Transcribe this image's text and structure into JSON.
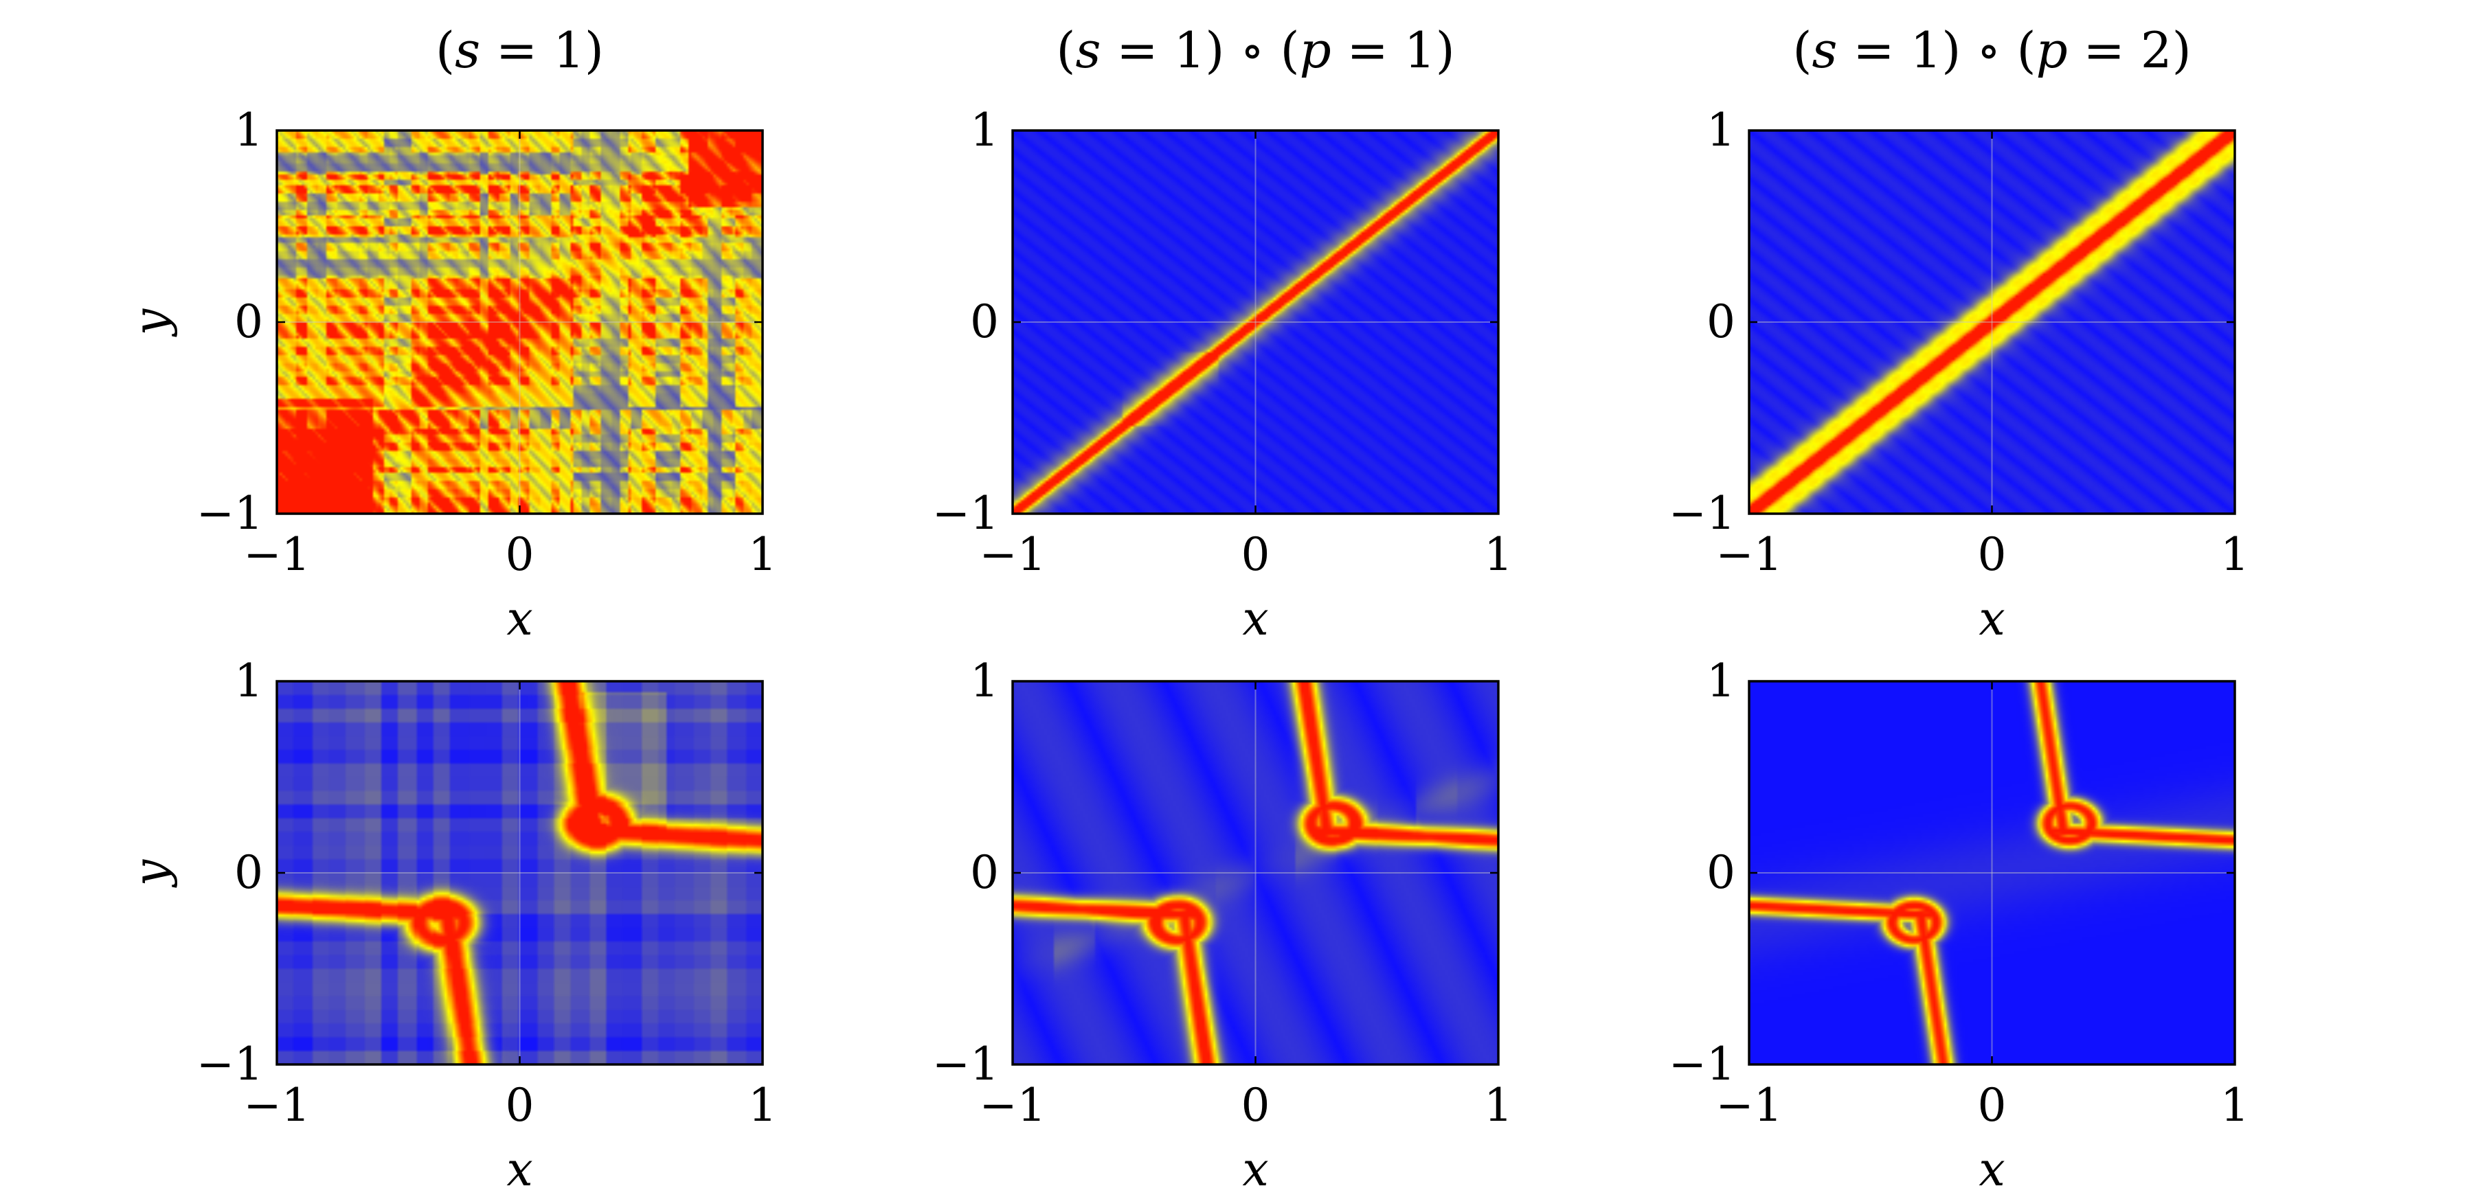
{
  "chart_data": [
    {
      "type": "heatmap",
      "title": "(s = 1)",
      "title_parts": [
        "(",
        "s",
        " = 1)"
      ],
      "xlabel": "x",
      "ylabel": "y",
      "xlim": [
        -1,
        1
      ],
      "ylim": [
        -1,
        1
      ],
      "xticks": [
        "−1",
        "0",
        "1"
      ],
      "yticks": [
        "−1",
        "0",
        "1"
      ],
      "pattern": "dense-diagonal",
      "colormap": [
        "#1010ff",
        "#ffff00",
        "#ff1a00"
      ]
    },
    {
      "type": "heatmap",
      "title": "(s = 1) ∘ (p = 1)",
      "title_parts": [
        "(",
        "s",
        " = 1) ∘ (",
        "p",
        " = 1)"
      ],
      "xlabel": "x",
      "ylabel": "",
      "xlim": [
        -1,
        1
      ],
      "ylim": [
        -1,
        1
      ],
      "xticks": [
        "−1",
        "0",
        "1"
      ],
      "yticks": [
        "−1",
        "0",
        "1"
      ],
      "pattern": "sharp-diagonal",
      "colormap": [
        "#1010ff",
        "#ffff00",
        "#ff1a00"
      ]
    },
    {
      "type": "heatmap",
      "title": "(s = 1) ∘ (p = 2)",
      "title_parts": [
        "(",
        "s",
        " = 1) ∘ (",
        "p",
        " = 2)"
      ],
      "xlabel": "x",
      "ylabel": "",
      "xlim": [
        -1,
        1
      ],
      "ylim": [
        -1,
        1
      ],
      "xticks": [
        "−1",
        "0",
        "1"
      ],
      "yticks": [
        "−1",
        "0",
        "1"
      ],
      "pattern": "wide-diagonal",
      "colormap": [
        "#1010ff",
        "#ffff00",
        "#ff1a00"
      ]
    },
    {
      "type": "heatmap",
      "title": "",
      "xlabel": "x",
      "ylabel": "y",
      "xlim": [
        -1,
        1
      ],
      "ylim": [
        -1,
        1
      ],
      "xticks": [
        "−1",
        "0",
        "1"
      ],
      "yticks": [
        "−1",
        "0",
        "1"
      ],
      "pattern": "curve-blocky",
      "colormap": [
        "#1010ff",
        "#ffff00",
        "#ff1a00"
      ]
    },
    {
      "type": "heatmap",
      "title": "",
      "xlabel": "x",
      "ylabel": "",
      "xlim": [
        -1,
        1
      ],
      "ylim": [
        -1,
        1
      ],
      "xticks": [
        "−1",
        "0",
        "1"
      ],
      "yticks": [
        "−1",
        "0",
        "1"
      ],
      "pattern": "curve-streaked",
      "colormap": [
        "#1010ff",
        "#ffff00",
        "#ff1a00"
      ]
    },
    {
      "type": "heatmap",
      "title": "",
      "xlabel": "x",
      "ylabel": "",
      "xlim": [
        -1,
        1
      ],
      "ylim": [
        -1,
        1
      ],
      "xticks": [
        "−1",
        "0",
        "1"
      ],
      "yticks": [
        "−1",
        "0",
        "1"
      ],
      "pattern": "curve-smooth",
      "colormap": [
        "#1010ff",
        "#ffff00",
        "#ff1a00"
      ]
    }
  ]
}
